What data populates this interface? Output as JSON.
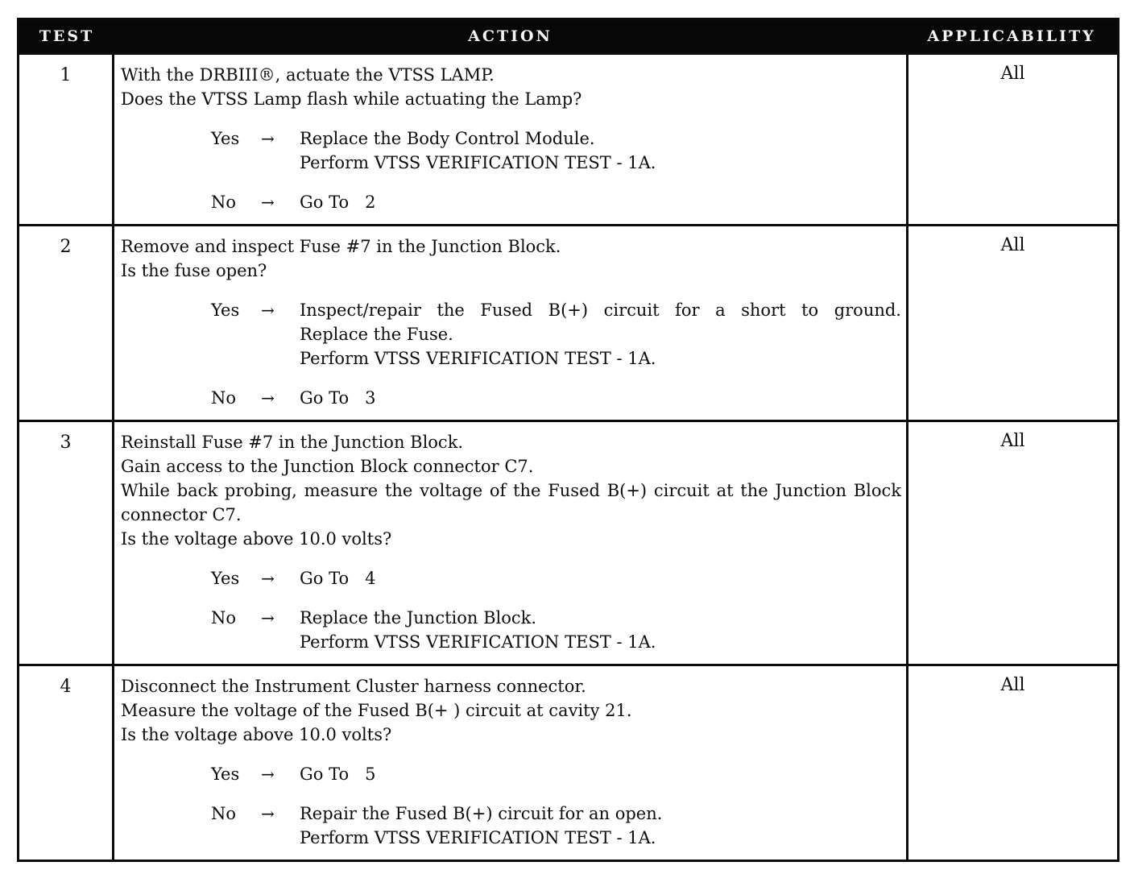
{
  "header": {
    "test": "TEST",
    "action": "ACTION",
    "applicability": "APPLICABILITY"
  },
  "rows": [
    {
      "test": "1",
      "applicability": "All",
      "lines": [
        "With the DRBIII®, actuate the VTSS LAMP.",
        "Does the VTSS Lamp flash while actuating the Lamp?"
      ],
      "decisions": [
        {
          "label": "Yes",
          "arrow": "→",
          "results": [
            "Replace the Body Control Module.",
            "Perform VTSS VERIFICATION TEST - 1A."
          ]
        },
        {
          "label": "No",
          "arrow": "→",
          "results": [
            "Go To   2"
          ]
        }
      ]
    },
    {
      "test": "2",
      "applicability": "All",
      "lines": [
        "Remove and inspect Fuse #7 in the Junction Block.",
        "Is the fuse open?"
      ],
      "decisions": [
        {
          "label": "Yes",
          "arrow": "→",
          "results": [
            "Inspect/repair the Fused B(+) circuit for a short to ground.",
            "Replace the Fuse.",
            "Perform VTSS VERIFICATION TEST - 1A."
          ]
        },
        {
          "label": "No",
          "arrow": "→",
          "results": [
            "Go To   3"
          ]
        }
      ]
    },
    {
      "test": "3",
      "applicability": "All",
      "lines": [
        "Reinstall Fuse #7 in the Junction Block.",
        "Gain access to the Junction Block connector C7.",
        "While back probing, measure the voltage of the Fused B(+) circuit at the Junction Block connector C7.",
        "Is the voltage above 10.0 volts?"
      ],
      "decisions": [
        {
          "label": "Yes",
          "arrow": "→",
          "results": [
            "Go To   4"
          ]
        },
        {
          "label": "No",
          "arrow": "→",
          "results": [
            "Replace the Junction Block.",
            "Perform VTSS VERIFICATION TEST - 1A."
          ]
        }
      ]
    },
    {
      "test": "4",
      "applicability": "All",
      "lines": [
        "Disconnect the Instrument Cluster harness connector.",
        "Measure the voltage of the Fused B(+ ) circuit at cavity 21.",
        "Is the voltage above 10.0 volts?"
      ],
      "decisions": [
        {
          "label": "Yes",
          "arrow": "→",
          "results": [
            "Go To   5"
          ]
        },
        {
          "label": "No",
          "arrow": "→",
          "results": [
            "Repair the Fused B(+) circuit for an open.",
            "Perform VTSS VERIFICATION TEST - 1A."
          ]
        }
      ]
    }
  ],
  "colors": {
    "ink": "#0d0d0d",
    "paper": "#ffffff",
    "header_bg": "#070707",
    "header_text": "#f3f3f3"
  }
}
